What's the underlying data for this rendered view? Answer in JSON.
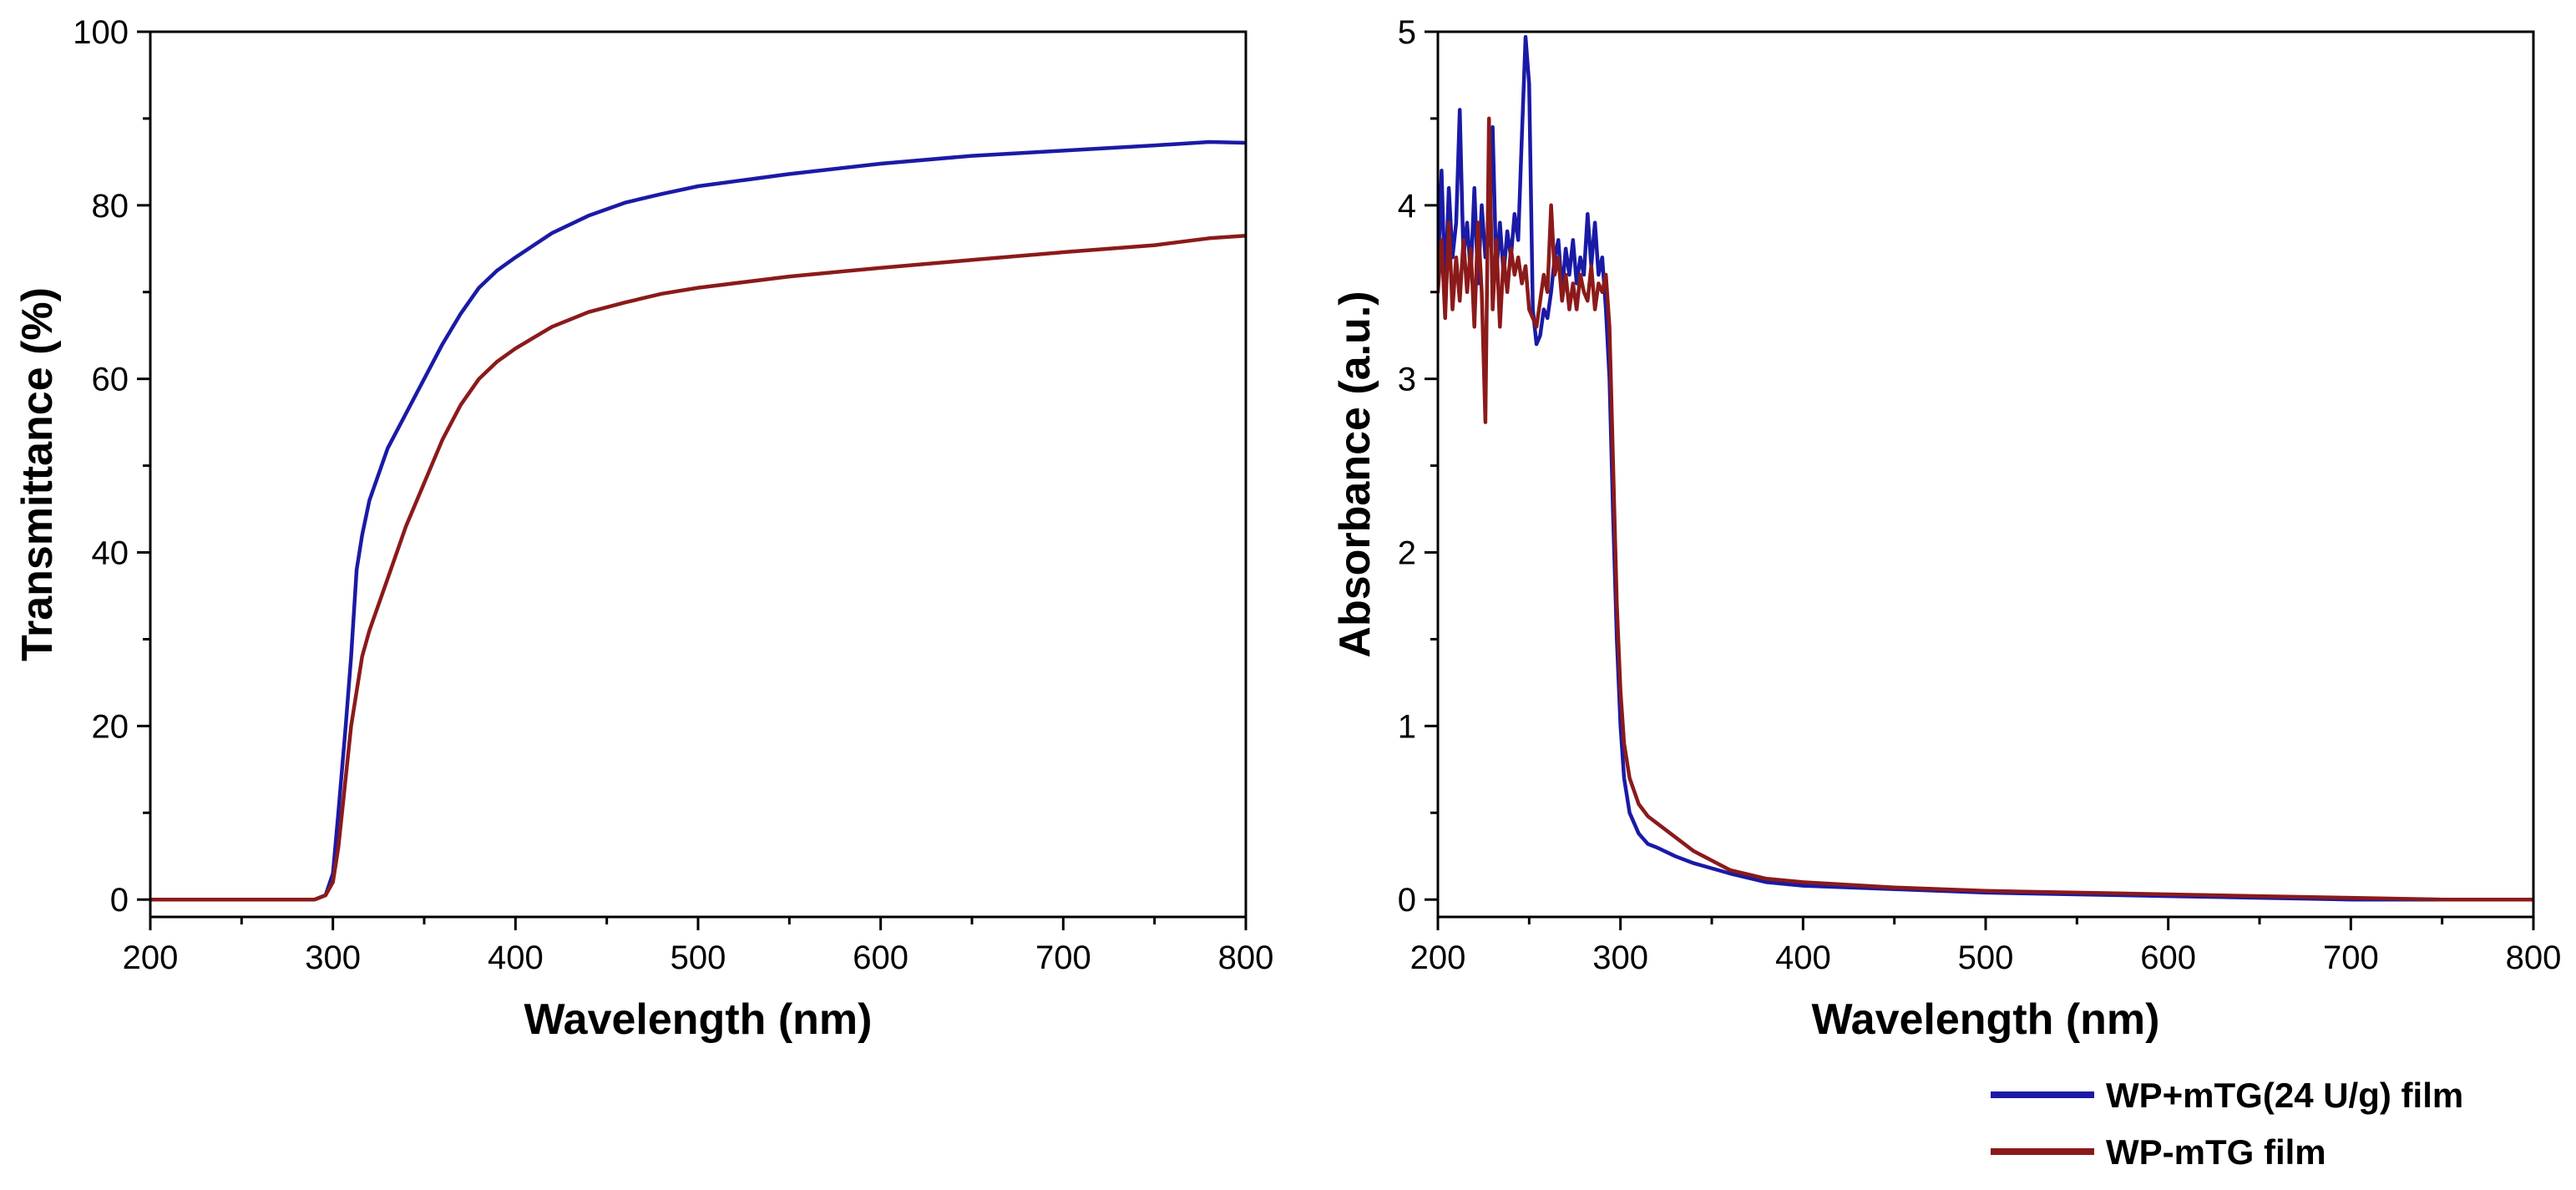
{
  "colors": {
    "series_blue": "#1a1aa6",
    "series_red": "#8b1a1a",
    "axis": "#000000",
    "background": "#ffffff"
  },
  "legend": {
    "entries": [
      {
        "name": "WP+mTG(24 U/g) film",
        "color": "#1a1aa6"
      },
      {
        "name": "WP-mTG film",
        "color": "#8b1a1a"
      }
    ]
  },
  "chart_data": [
    {
      "type": "line",
      "title": "",
      "xlabel": "Wavelength (nm)",
      "ylabel": "Transmittance (%)",
      "xlim": [
        200,
        800
      ],
      "ylim": [
        -2,
        100
      ],
      "xticks": [
        "200",
        "300",
        "400",
        "500",
        "600",
        "700",
        "800"
      ],
      "yticks": [
        "0",
        "20",
        "40",
        "60",
        "80",
        "100"
      ],
      "series": [
        {
          "name": "WP+mTG(24 U/g) film",
          "color": "#1a1aa6",
          "x": [
            200,
            250,
            290,
            296,
            300,
            303,
            305,
            307,
            310,
            313,
            316,
            320,
            330,
            340,
            350,
            360,
            370,
            380,
            390,
            400,
            420,
            440,
            460,
            480,
            500,
            550,
            600,
            650,
            700,
            750,
            780,
            800
          ],
          "y": [
            0,
            0,
            0,
            0.5,
            3,
            10,
            15,
            20,
            28,
            38,
            42,
            46,
            52,
            56,
            60,
            64,
            67.5,
            70.5,
            72.5,
            74,
            76.8,
            78.8,
            80.3,
            81.3,
            82.2,
            83.6,
            84.8,
            85.7,
            86.3,
            86.9,
            87.3,
            87.2
          ]
        },
        {
          "name": "WP-mTG film",
          "color": "#8b1a1a",
          "x": [
            200,
            250,
            290,
            296,
            300,
            303,
            306,
            310,
            313,
            316,
            320,
            330,
            340,
            350,
            360,
            370,
            380,
            390,
            400,
            420,
            440,
            460,
            480,
            500,
            550,
            600,
            650,
            700,
            750,
            780,
            800
          ],
          "y": [
            0,
            0,
            0,
            0.5,
            2,
            6,
            12,
            20,
            24,
            28,
            31,
            37,
            43,
            48,
            53,
            57,
            60,
            62,
            63.5,
            66,
            67.7,
            68.8,
            69.8,
            70.5,
            71.8,
            72.8,
            73.7,
            74.6,
            75.4,
            76.2,
            76.5
          ]
        }
      ]
    },
    {
      "type": "line",
      "title": "",
      "xlabel": "Wavelength (nm)",
      "ylabel": "Absorbance (a.u.)",
      "xlim": [
        200,
        800
      ],
      "ylim": [
        -0.1,
        5
      ],
      "xticks": [
        "200",
        "300",
        "400",
        "500",
        "600",
        "700",
        "800"
      ],
      "yticks": [
        "0",
        "1",
        "2",
        "3",
        "4",
        "5"
      ],
      "series": [
        {
          "name": "WP+mTG(24 U/g) film",
          "color": "#1a1aa6",
          "x": [
            200,
            202,
            204,
            206,
            208,
            210,
            212,
            214,
            216,
            218,
            220,
            222,
            224,
            226,
            228,
            230,
            232,
            234,
            236,
            238,
            240,
            242,
            244,
            246,
            248,
            250,
            252,
            254,
            256,
            258,
            260,
            262,
            264,
            266,
            268,
            270,
            272,
            274,
            276,
            278,
            280,
            282,
            284,
            286,
            288,
            290,
            292,
            294,
            296,
            298,
            300,
            302,
            305,
            310,
            315,
            320,
            330,
            340,
            360,
            380,
            400,
            450,
            500,
            550,
            600,
            650,
            700,
            750,
            800
          ],
          "y": [
            3.6,
            4.2,
            3.5,
            4.1,
            3.7,
            3.9,
            4.55,
            3.7,
            3.9,
            3.6,
            4.1,
            3.55,
            4.0,
            3.7,
            3.8,
            4.45,
            3.6,
            3.9,
            3.6,
            3.85,
            3.7,
            3.95,
            3.8,
            4.4,
            4.97,
            4.7,
            3.4,
            3.2,
            3.25,
            3.4,
            3.35,
            3.5,
            3.7,
            3.8,
            3.5,
            3.75,
            3.6,
            3.8,
            3.55,
            3.7,
            3.6,
            3.95,
            3.65,
            3.9,
            3.6,
            3.7,
            3.4,
            3.0,
            2.2,
            1.5,
            1.0,
            0.7,
            0.5,
            0.38,
            0.32,
            0.3,
            0.25,
            0.21,
            0.15,
            0.1,
            0.08,
            0.06,
            0.04,
            0.03,
            0.02,
            0.01,
            0.0,
            0.0,
            0.0
          ]
        },
        {
          "name": "WP-mTG film",
          "color": "#8b1a1a",
          "x": [
            200,
            202,
            204,
            206,
            208,
            210,
            212,
            214,
            216,
            218,
            220,
            222,
            224,
            226,
            228,
            230,
            232,
            234,
            236,
            238,
            240,
            242,
            244,
            246,
            248,
            250,
            252,
            254,
            256,
            258,
            260,
            262,
            264,
            266,
            268,
            270,
            272,
            274,
            276,
            278,
            280,
            282,
            284,
            286,
            288,
            290,
            292,
            294,
            296,
            298,
            300,
            302,
            305,
            310,
            315,
            320,
            330,
            340,
            360,
            380,
            400,
            450,
            500,
            550,
            600,
            650,
            700,
            750,
            800
          ],
          "y": [
            3.5,
            3.8,
            3.35,
            3.9,
            3.4,
            3.7,
            3.45,
            3.8,
            3.5,
            3.75,
            3.3,
            3.9,
            3.5,
            2.75,
            4.5,
            3.4,
            3.8,
            3.3,
            3.7,
            3.5,
            3.75,
            3.6,
            3.7,
            3.55,
            3.65,
            3.4,
            3.35,
            3.3,
            3.45,
            3.6,
            3.5,
            4.0,
            3.6,
            3.7,
            3.45,
            3.6,
            3.4,
            3.55,
            3.4,
            3.6,
            3.5,
            3.45,
            3.65,
            3.4,
            3.55,
            3.5,
            3.6,
            3.3,
            2.5,
            1.7,
            1.2,
            0.9,
            0.7,
            0.55,
            0.48,
            0.44,
            0.36,
            0.28,
            0.17,
            0.12,
            0.1,
            0.07,
            0.05,
            0.04,
            0.03,
            0.02,
            0.01,
            0.0,
            0.0
          ]
        }
      ]
    }
  ]
}
